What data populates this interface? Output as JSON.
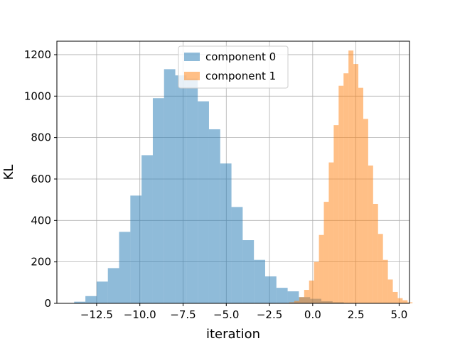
{
  "chart_data": {
    "type": "bar",
    "title": "",
    "xlabel": "iteration",
    "ylabel": "KL",
    "xlim": [
      -14.8,
      5.6
    ],
    "ylim": [
      0,
      1265
    ],
    "xticks": [
      -12.5,
      -10.0,
      -7.5,
      -5.0,
      -2.5,
      0.0,
      2.5,
      5.0
    ],
    "xtick_labels": [
      "−12.5",
      "−10.0",
      "−7.5",
      "−5.0",
      "−2.5",
      "0.0",
      "2.5",
      "5.0"
    ],
    "yticks": [
      0,
      200,
      400,
      600,
      800,
      1000,
      1200
    ],
    "ytick_labels": [
      "0",
      "200",
      "400",
      "600",
      "800",
      "1000",
      "1200"
    ],
    "grid": true,
    "legend_position": "top-center",
    "series": [
      {
        "name": "component 0",
        "color": "#1f77b4",
        "opacity": 0.5,
        "bin_start": -13.8,
        "bin_width": 0.65,
        "counts": [
          8,
          35,
          105,
          170,
          345,
          520,
          715,
          990,
          1130,
          1100,
          1085,
          975,
          840,
          675,
          465,
          305,
          210,
          130,
          75,
          58,
          30,
          22,
          10,
          5
        ]
      },
      {
        "name": "component 1",
        "color": "#ff7f0e",
        "opacity": 0.5,
        "bin_start": -1.35,
        "bin_width": 0.285,
        "counts": [
          5,
          12,
          30,
          65,
          110,
          200,
          330,
          490,
          680,
          860,
          1050,
          1110,
          1220,
          1155,
          1040,
          890,
          665,
          480,
          335,
          210,
          115,
          55,
          25,
          15,
          5
        ]
      }
    ]
  }
}
